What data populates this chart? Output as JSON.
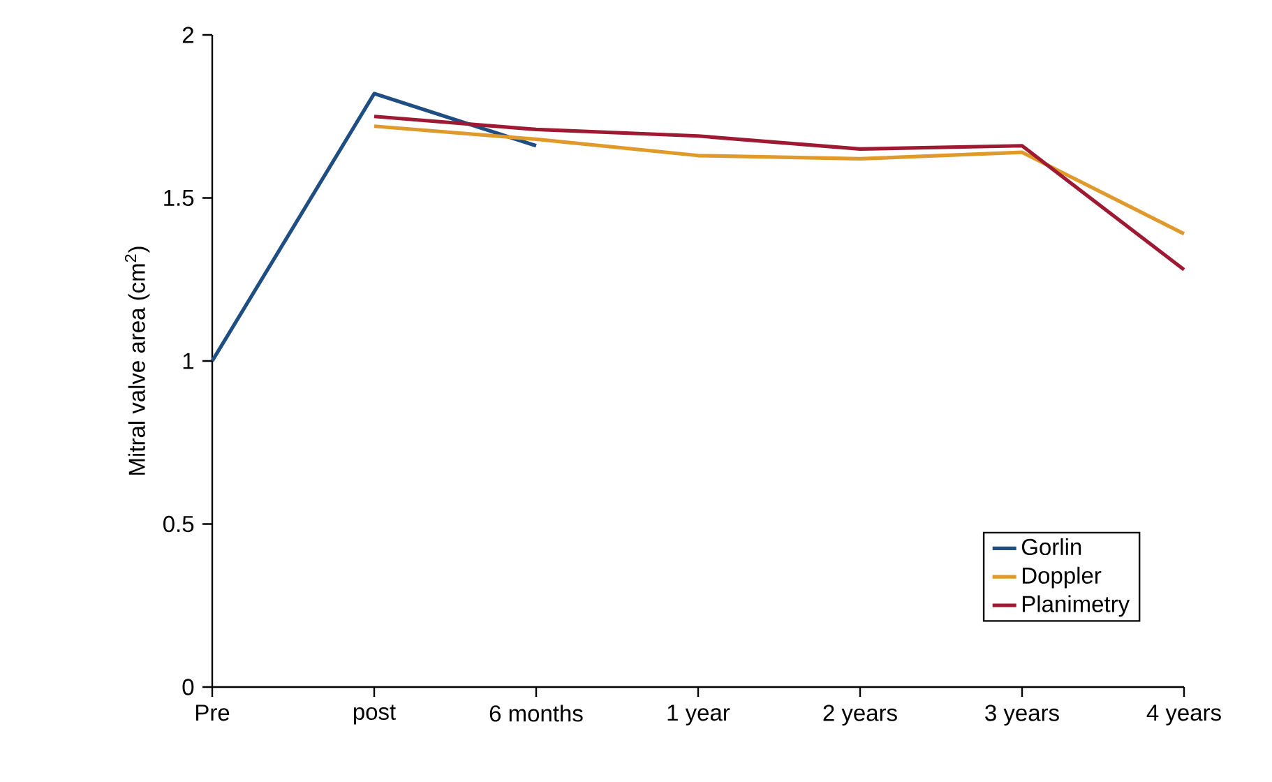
{
  "chart_data": {
    "type": "line",
    "ylabel": "Mitral valve area (cm$^{2}$)",
    "categories": [
      "Pre",
      "post",
      "6 months",
      "1 year",
      "2 years",
      "3 years",
      "4 years"
    ],
    "ylim": [
      0,
      2
    ],
    "yticks": [
      0,
      0.5,
      1,
      1.5,
      2
    ],
    "grid": false,
    "legend": "bottom right",
    "marker": "none",
    "line_style": "solid",
    "series": [
      {
        "name": "Gorlin",
        "color": "#1f4e82",
        "values": [
          1.0,
          1.82,
          1.66,
          null,
          null,
          null,
          null
        ]
      },
      {
        "name": "Doppler",
        "color": "#e09a2c",
        "values": [
          null,
          1.72,
          1.68,
          1.63,
          1.62,
          1.64,
          1.39
        ]
      },
      {
        "name": "Planimetry",
        "color": "#9e1a32",
        "values": [
          null,
          1.75,
          1.71,
          1.69,
          1.65,
          1.66,
          1.28
        ]
      }
    ]
  }
}
